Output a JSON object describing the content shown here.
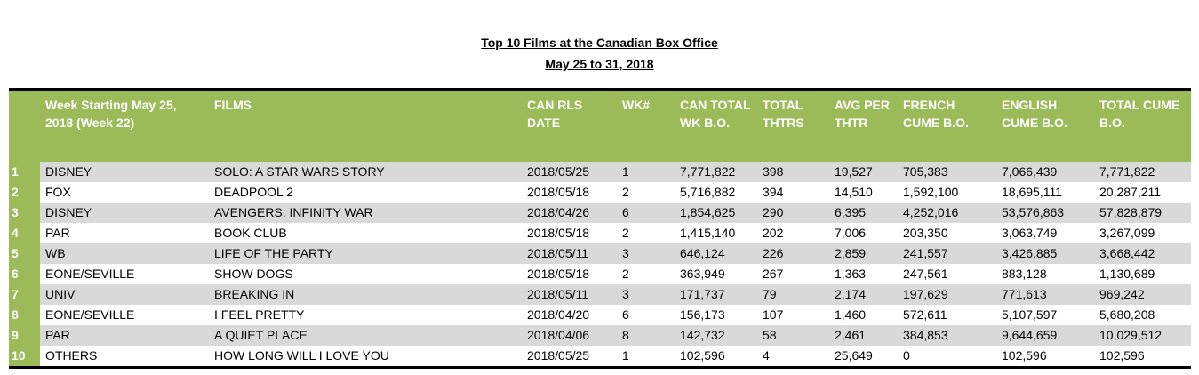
{
  "title": "Top 10 Films at the Canadian Box Office",
  "subtitle": "May 25 to 31, 2018",
  "columns": {
    "week": "Week Starting May 25, 2018 (Week  22)",
    "films": "FILMS",
    "rls_date": "CAN RLS DATE",
    "wk": "WK#",
    "can_total": "CAN TOTAL WK B.O.",
    "thtrs": "TOTAL THTRS",
    "avg": "AVG PER THTR",
    "french": "FRENCH CUME B.O.",
    "english": "ENGLISH CUME B.O.",
    "total_cume": "TOTAL CUME B.O."
  },
  "rows": [
    {
      "rank": "1",
      "distributor": "DISNEY",
      "film": "SOLO: A STAR WARS STORY",
      "date": "2018/05/25",
      "wk": "1",
      "can_total": "7,771,822",
      "thtrs": "398",
      "avg": "19,527",
      "french": "705,383",
      "english": "7,066,439",
      "total_cume": "7,771,822"
    },
    {
      "rank": "2",
      "distributor": "FOX",
      "film": "DEADPOOL 2",
      "date": "2018/05/18",
      "wk": "2",
      "can_total": "5,716,882",
      "thtrs": "394",
      "avg": "14,510",
      "french": "1,592,100",
      "english": "18,695,111",
      "total_cume": "20,287,211"
    },
    {
      "rank": "3",
      "distributor": "DISNEY",
      "film": "AVENGERS: INFINITY WAR",
      "date": "2018/04/26",
      "wk": "6",
      "can_total": "1,854,625",
      "thtrs": "290",
      "avg": "6,395",
      "french": "4,252,016",
      "english": "53,576,863",
      "total_cume": "57,828,879"
    },
    {
      "rank": "4",
      "distributor": "PAR",
      "film": "BOOK CLUB",
      "date": "2018/05/18",
      "wk": "2",
      "can_total": "1,415,140",
      "thtrs": "202",
      "avg": "7,006",
      "french": "203,350",
      "english": "3,063,749",
      "total_cume": "3,267,099"
    },
    {
      "rank": "5",
      "distributor": "WB",
      "film": "LIFE OF THE PARTY",
      "date": "2018/05/11",
      "wk": "3",
      "can_total": "646,124",
      "thtrs": "226",
      "avg": "2,859",
      "french": "241,557",
      "english": "3,426,885",
      "total_cume": "3,668,442"
    },
    {
      "rank": "6",
      "distributor": "EONE/SEVILLE",
      "film": "SHOW DOGS",
      "date": "2018/05/18",
      "wk": "2",
      "can_total": "363,949",
      "thtrs": "267",
      "avg": "1,363",
      "french": "247,561",
      "english": "883,128",
      "total_cume": "1,130,689"
    },
    {
      "rank": "7",
      "distributor": "UNIV",
      "film": "BREAKING IN",
      "date": "2018/05/11",
      "wk": "3",
      "can_total": "171,737",
      "thtrs": "79",
      "avg": "2,174",
      "french": "197,629",
      "english": "771,613",
      "total_cume": "969,242"
    },
    {
      "rank": "8",
      "distributor": "EONE/SEVILLE",
      "film": "I FEEL PRETTY",
      "date": "2018/04/20",
      "wk": "6",
      "can_total": "156,173",
      "thtrs": "107",
      "avg": "1,460",
      "french": "572,611",
      "english": "5,107,597",
      "total_cume": "5,680,208"
    },
    {
      "rank": "9",
      "distributor": "PAR",
      "film": "A QUIET PLACE",
      "date": "2018/04/06",
      "wk": "8",
      "can_total": "142,732",
      "thtrs": "58",
      "avg": "2,461",
      "french": "384,853",
      "english": "9,644,659",
      "total_cume": "10,029,512"
    },
    {
      "rank": "10",
      "distributor": "OTHERS",
      "film": "HOW LONG WILL I LOVE YOU",
      "date": "2018/05/25",
      "wk": "1",
      "can_total": "102,596",
      "thtrs": "4",
      "avg": "25,649",
      "french": "0",
      "english": "102,596",
      "total_cume": "102,596"
    }
  ],
  "colors": {
    "header_bg": "#9bbb59",
    "header_text": "#ffffff",
    "row_alt": "#d9d9d9"
  }
}
